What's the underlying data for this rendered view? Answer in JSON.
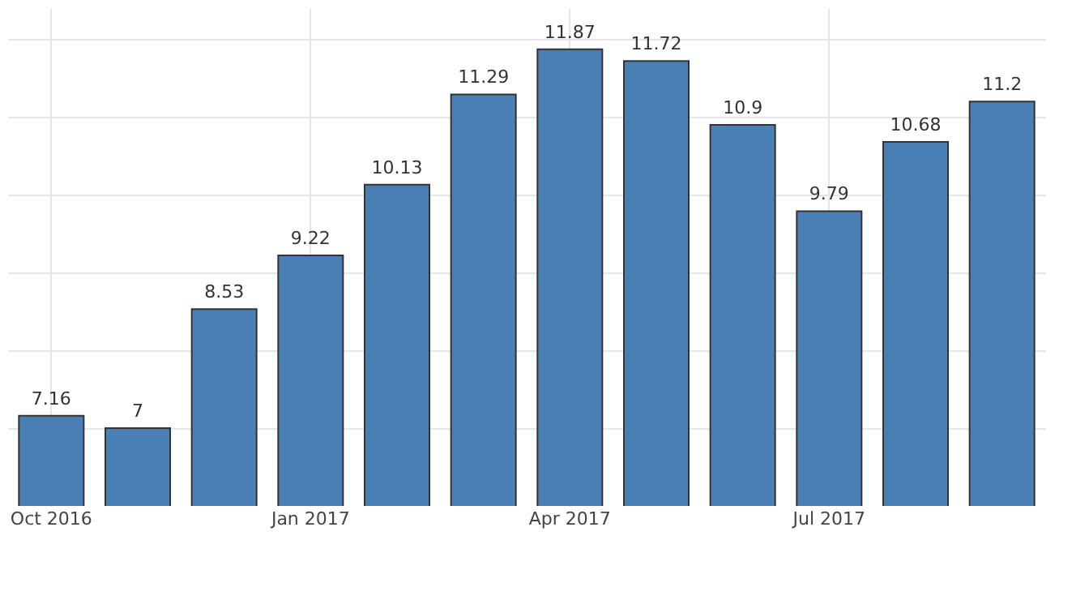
{
  "chart_data": {
    "type": "bar",
    "categories": [
      "Oct 2016",
      null,
      null,
      "Jan 2017",
      null,
      null,
      "Apr 2017",
      null,
      null,
      "Jul 2017",
      null,
      null
    ],
    "values": [
      7.16,
      7,
      8.53,
      9.22,
      10.13,
      11.29,
      11.87,
      11.72,
      10.9,
      9.79,
      10.68,
      11.2
    ],
    "color": "#4a7fb5",
    "ylim": [
      6,
      12.4
    ],
    "yticks": [
      {
        "value": 7,
        "label": null
      },
      {
        "value": 8,
        "label": null
      },
      {
        "value": 9,
        "label": null
      },
      {
        "value": 10,
        "label": null
      },
      {
        "value": 11,
        "label": null
      },
      {
        "value": 12,
        "label": null
      }
    ],
    "grid": true,
    "tick_labels": "x",
    "data_labels": true
  }
}
